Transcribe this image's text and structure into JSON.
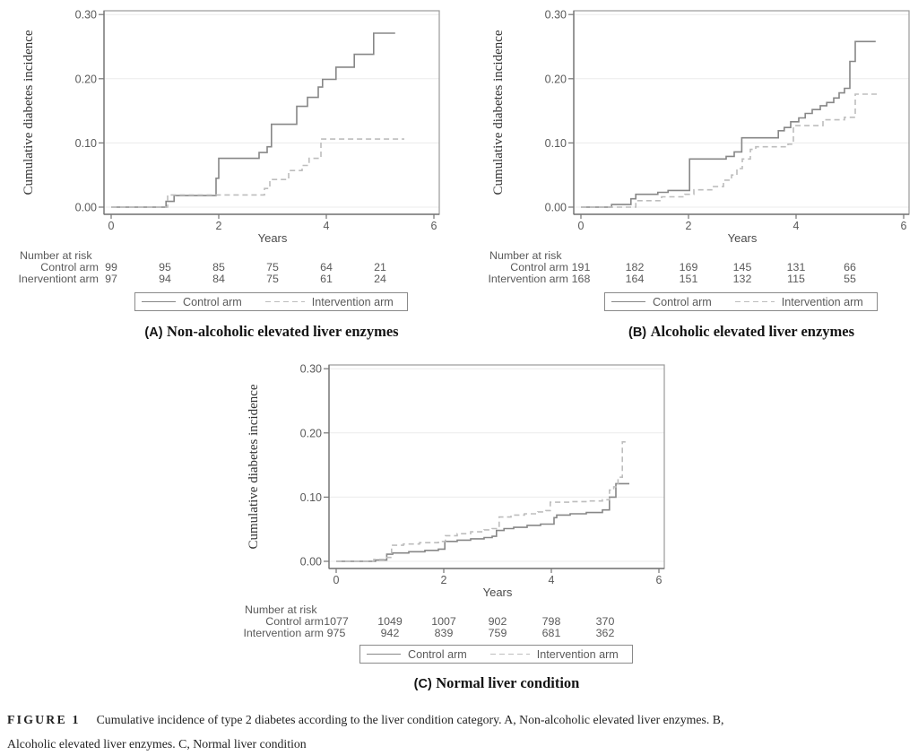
{
  "figure": {
    "caption_label": "FIGURE 1",
    "caption_line1": "Cumulative incidence of type 2 diabetes according to the liver condition category. A, Non-alcoholic elevated liver enzymes. B,",
    "caption_line2": "Alcoholic elevated liver enzymes. C, Normal liver condition"
  },
  "colors": {
    "control_line": "#878787",
    "intervention_line": "#bdbdbd",
    "grid_line": "#ebebeb",
    "frame": "#9a9a9a",
    "axis": "#757575",
    "tick_text": "#5a5a5a",
    "table_text": "#5a5a5a",
    "legend_border": "#8a8a8a",
    "caption_text": "#141414"
  },
  "chart_data": [
    {
      "id": "A",
      "type": "line",
      "subtype": "step-cumulative-incidence",
      "title_prefix": "(A)",
      "title_text": "Non-alcoholic elevated liver enzymes",
      "xlabel": "Years",
      "ylabel": "Cumulative diabetes incidence",
      "xlim": [
        0,
        6
      ],
      "ylim": [
        0,
        0.3
      ],
      "xticks": [
        "0",
        "2",
        "4",
        "6"
      ],
      "yticks": [
        "0.00",
        "0.10",
        "0.20",
        "0.30"
      ],
      "grid": true,
      "legend_position": "bottom-box",
      "series": [
        {
          "name": "Control arm",
          "style": "solid",
          "points": [
            [
              0,
              0
            ],
            [
              1.02,
              0.009
            ],
            [
              1.17,
              0.018
            ],
            [
              1.95,
              0.045
            ],
            [
              2.0,
              0.076
            ],
            [
              2.75,
              0.085
            ],
            [
              2.9,
              0.094
            ],
            [
              2.98,
              0.129
            ],
            [
              3.45,
              0.157
            ],
            [
              3.65,
              0.171
            ],
            [
              3.85,
              0.187
            ],
            [
              3.93,
              0.199
            ],
            [
              4.18,
              0.218
            ],
            [
              4.52,
              0.238
            ],
            [
              4.88,
              0.271
            ]
          ],
          "end_x": 5.28
        },
        {
          "name": "Intervention arm",
          "style": "dashed",
          "points": [
            [
              0,
              0
            ],
            [
              1.05,
              0.019
            ],
            [
              2.85,
              0.029
            ],
            [
              2.95,
              0.043
            ],
            [
              3.3,
              0.057
            ],
            [
              3.55,
              0.065
            ],
            [
              3.68,
              0.076
            ],
            [
              3.9,
              0.106
            ]
          ],
          "end_x": 5.45
        }
      ],
      "number_at_risk": {
        "header": "Number at risk",
        "times": [
          0,
          1,
          2,
          3,
          4,
          5
        ],
        "rows": [
          {
            "label": "Control arm",
            "values": [
              "99",
              "95",
              "85",
              "75",
              "64",
              "21"
            ]
          },
          {
            "label": "Inerventiont arm",
            "values": [
              "97",
              "94",
              "84",
              "75",
              "61",
              "24"
            ]
          }
        ]
      },
      "legend": [
        {
          "label": "Control arm",
          "style": "solid"
        },
        {
          "label": "Intervention arm",
          "style": "dashed"
        }
      ]
    },
    {
      "id": "B",
      "type": "line",
      "subtype": "step-cumulative-incidence",
      "title_prefix": "(B)",
      "title_text": "Alcoholic elevated liver enzymes",
      "xlabel": "Years",
      "ylabel": "Cumulative diabetes incidence",
      "xlim": [
        0,
        6
      ],
      "ylim": [
        0,
        0.3
      ],
      "xticks": [
        "0",
        "2",
        "4",
        "6"
      ],
      "yticks": [
        "0.00",
        "0.10",
        "0.20",
        "0.30"
      ],
      "grid": true,
      "legend_position": "bottom-box",
      "series": [
        {
          "name": "Control arm",
          "style": "solid",
          "points": [
            [
              0,
              0
            ],
            [
              0.57,
              0.004
            ],
            [
              0.93,
              0.013
            ],
            [
              1.02,
              0.02
            ],
            [
              1.43,
              0.023
            ],
            [
              1.62,
              0.026
            ],
            [
              2.02,
              0.075
            ],
            [
              2.7,
              0.079
            ],
            [
              2.85,
              0.086
            ],
            [
              2.99,
              0.108
            ],
            [
              3.67,
              0.119
            ],
            [
              3.78,
              0.124
            ],
            [
              3.9,
              0.133
            ],
            [
              4.05,
              0.139
            ],
            [
              4.17,
              0.146
            ],
            [
              4.3,
              0.152
            ],
            [
              4.45,
              0.158
            ],
            [
              4.57,
              0.163
            ],
            [
              4.7,
              0.17
            ],
            [
              4.8,
              0.178
            ],
            [
              4.9,
              0.185
            ],
            [
              5.0,
              0.227
            ],
            [
              5.1,
              0.258
            ]
          ],
          "end_x": 5.48
        },
        {
          "name": "Intervention arm",
          "style": "dashed",
          "points": [
            [
              0,
              0
            ],
            [
              1.02,
              0.01
            ],
            [
              1.5,
              0.016
            ],
            [
              1.93,
              0.02
            ],
            [
              2.1,
              0.027
            ],
            [
              2.45,
              0.032
            ],
            [
              2.65,
              0.042
            ],
            [
              2.8,
              0.05
            ],
            [
              2.9,
              0.06
            ],
            [
              3.0,
              0.075
            ],
            [
              3.15,
              0.09
            ],
            [
              3.25,
              0.094
            ],
            [
              3.85,
              0.098
            ],
            [
              3.95,
              0.127
            ],
            [
              4.5,
              0.136
            ],
            [
              4.9,
              0.14
            ],
            [
              5.1,
              0.176
            ]
          ],
          "end_x": 5.5
        }
      ],
      "number_at_risk": {
        "header": "Number at risk",
        "times": [
          0,
          1,
          2,
          3,
          4,
          5
        ],
        "rows": [
          {
            "label": "Control arm",
            "values": [
              "191",
              "182",
              "169",
              "145",
              "131",
              "66"
            ]
          },
          {
            "label": "Intervention arm",
            "values": [
              "168",
              "164",
              "151",
              "132",
              "115",
              "55"
            ]
          }
        ]
      },
      "legend": [
        {
          "label": "Control arm",
          "style": "solid"
        },
        {
          "label": "Intervention arm",
          "style": "dashed"
        }
      ]
    },
    {
      "id": "C",
      "type": "line",
      "subtype": "step-cumulative-incidence",
      "title_prefix": "(C)",
      "title_text": "Normal liver condition",
      "xlabel": "Years",
      "ylabel": "Cumulative diabetes incidence",
      "xlim": [
        0,
        6
      ],
      "ylim": [
        0,
        0.3
      ],
      "xticks": [
        "0",
        "2",
        "4",
        "6"
      ],
      "yticks": [
        "0.00",
        "0.10",
        "0.20",
        "0.30"
      ],
      "grid": true,
      "legend_position": "bottom-box",
      "series": [
        {
          "name": "Control arm",
          "style": "solid",
          "points": [
            [
              0,
              0
            ],
            [
              0.73,
              0.002
            ],
            [
              0.94,
              0.011
            ],
            [
              1.05,
              0.013
            ],
            [
              1.35,
              0.015
            ],
            [
              1.65,
              0.017
            ],
            [
              1.9,
              0.019
            ],
            [
              2.02,
              0.031
            ],
            [
              2.25,
              0.033
            ],
            [
              2.5,
              0.035
            ],
            [
              2.75,
              0.037
            ],
            [
              2.9,
              0.039
            ],
            [
              2.98,
              0.048
            ],
            [
              3.12,
              0.051
            ],
            [
              3.3,
              0.053
            ],
            [
              3.55,
              0.056
            ],
            [
              3.8,
              0.058
            ],
            [
              4.05,
              0.068
            ],
            [
              4.1,
              0.072
            ],
            [
              4.35,
              0.074
            ],
            [
              4.65,
              0.076
            ],
            [
              4.95,
              0.08
            ],
            [
              5.08,
              0.1
            ],
            [
              5.2,
              0.121
            ]
          ],
          "end_x": 5.45
        },
        {
          "name": "Intervention arm",
          "style": "dashed",
          "points": [
            [
              0,
              0
            ],
            [
              0.7,
              0.003
            ],
            [
              0.9,
              0.006
            ],
            [
              1.03,
              0.025
            ],
            [
              1.25,
              0.027
            ],
            [
              1.55,
              0.029
            ],
            [
              1.9,
              0.031
            ],
            [
              2.03,
              0.04
            ],
            [
              2.25,
              0.043
            ],
            [
              2.5,
              0.046
            ],
            [
              2.75,
              0.049
            ],
            [
              2.9,
              0.051
            ],
            [
              3.03,
              0.069
            ],
            [
              3.25,
              0.072
            ],
            [
              3.5,
              0.074
            ],
            [
              3.75,
              0.077
            ],
            [
              3.9,
              0.079
            ],
            [
              3.98,
              0.092
            ],
            [
              4.35,
              0.093
            ],
            [
              4.7,
              0.094
            ],
            [
              4.95,
              0.096
            ],
            [
              5.08,
              0.111
            ],
            [
              5.16,
              0.116
            ],
            [
              5.24,
              0.131
            ],
            [
              5.32,
              0.186
            ]
          ],
          "end_x": 5.42
        }
      ],
      "number_at_risk": {
        "header": "Number at risk",
        "times": [
          0,
          1,
          2,
          3,
          4,
          5
        ],
        "rows": [
          {
            "label": "Control arm",
            "values": [
              "1077",
              "1049",
              "1007",
              "902",
              "798",
              "370"
            ]
          },
          {
            "label": "Intervention arm",
            "values": [
              "975",
              "942",
              "839",
              "759",
              "681",
              "362"
            ]
          }
        ]
      },
      "legend": [
        {
          "label": "Control arm",
          "style": "solid"
        },
        {
          "label": "Intervention arm",
          "style": "dashed"
        }
      ]
    }
  ]
}
